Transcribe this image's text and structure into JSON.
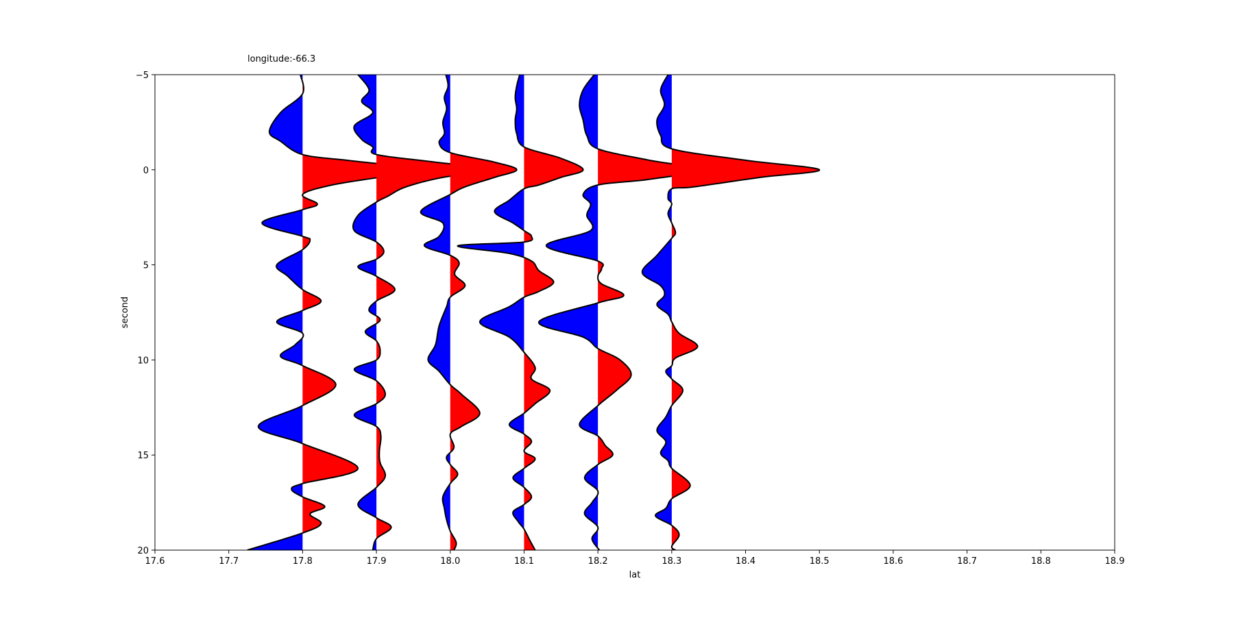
{
  "chart_data": {
    "type": "area",
    "title": "longitude:-66.3",
    "xlabel": "lat",
    "ylabel": "second",
    "xlim": [
      17.6,
      18.9
    ],
    "ylim": [
      -5,
      20
    ],
    "y_inverted": true,
    "grid": false,
    "x_ticks": [
      "17.6",
      "17.7",
      "17.8",
      "17.9",
      "18.0",
      "18.1",
      "18.2",
      "18.3",
      "18.4",
      "18.5",
      "18.6",
      "18.7",
      "18.8",
      "18.9"
    ],
    "y_ticks": [
      "-5",
      "0",
      "5",
      "10",
      "15",
      "20"
    ],
    "colors": {
      "positive": "#ff0000",
      "negative": "#0000ff",
      "outline": "#000000"
    },
    "series": [
      {
        "baseline": 17.8,
        "points": [
          [
            -5.0,
            -0.003
          ],
          [
            -4.0,
            0.0
          ],
          [
            -3.0,
            -0.03
          ],
          [
            -2.0,
            -0.045
          ],
          [
            -1.5,
            -0.03
          ],
          [
            -0.8,
            0.0
          ],
          [
            -0.5,
            0.06
          ],
          [
            -0.2,
            0.13
          ],
          [
            0.0,
            0.16
          ],
          [
            0.3,
            0.12
          ],
          [
            0.8,
            0.04
          ],
          [
            1.3,
            0.0
          ],
          [
            1.8,
            0.02
          ],
          [
            2.1,
            0.0
          ],
          [
            2.8,
            -0.055
          ],
          [
            3.5,
            0.0
          ],
          [
            3.7,
            0.01
          ],
          [
            4.2,
            0.0
          ],
          [
            5.0,
            -0.035
          ],
          [
            5.6,
            -0.02
          ],
          [
            6.3,
            0.0
          ],
          [
            6.9,
            0.025
          ],
          [
            7.4,
            0.0
          ],
          [
            8.0,
            -0.035
          ],
          [
            8.6,
            0.0
          ],
          [
            9.2,
            -0.01
          ],
          [
            9.8,
            -0.03
          ],
          [
            10.3,
            0.0
          ],
          [
            11.3,
            0.045
          ],
          [
            12.4,
            0.0
          ],
          [
            13.5,
            -0.06
          ],
          [
            14.4,
            0.0
          ],
          [
            15.7,
            0.075
          ],
          [
            16.5,
            0.0
          ],
          [
            16.8,
            -0.015
          ],
          [
            17.2,
            0.0
          ],
          [
            17.7,
            0.03
          ],
          [
            18.1,
            0.01
          ],
          [
            18.6,
            0.025
          ],
          [
            19.1,
            0.0
          ],
          [
            20.0,
            -0.075
          ]
        ]
      },
      {
        "baseline": 17.9,
        "points": [
          [
            -5.0,
            -0.025
          ],
          [
            -4.2,
            -0.01
          ],
          [
            -3.6,
            -0.02
          ],
          [
            -3.0,
            -0.005
          ],
          [
            -2.3,
            -0.03
          ],
          [
            -1.6,
            -0.02
          ],
          [
            -1.2,
            -0.005
          ],
          [
            -0.8,
            0.0
          ],
          [
            -0.4,
            0.08
          ],
          [
            0.0,
            0.16
          ],
          [
            0.4,
            0.09
          ],
          [
            0.9,
            0.04
          ],
          [
            1.4,
            0.015
          ],
          [
            1.7,
            0.0
          ],
          [
            2.4,
            -0.025
          ],
          [
            3.2,
            -0.03
          ],
          [
            3.8,
            0.0
          ],
          [
            4.3,
            0.01
          ],
          [
            4.7,
            0.0
          ],
          [
            5.1,
            -0.025
          ],
          [
            5.6,
            0.0
          ],
          [
            6.3,
            0.025
          ],
          [
            6.9,
            0.0
          ],
          [
            7.4,
            -0.01
          ],
          [
            7.9,
            0.005
          ],
          [
            8.5,
            -0.015
          ],
          [
            9.0,
            0.0
          ],
          [
            9.5,
            0.005
          ],
          [
            10.0,
            0.0
          ],
          [
            10.5,
            -0.03
          ],
          [
            11.1,
            0.0
          ],
          [
            11.8,
            0.012
          ],
          [
            12.3,
            0.0
          ],
          [
            12.9,
            -0.03
          ],
          [
            13.5,
            0.0
          ],
          [
            14.0,
            0.006
          ],
          [
            14.8,
            0.004
          ],
          [
            15.4,
            0.005
          ],
          [
            16.1,
            0.012
          ],
          [
            16.7,
            0.0
          ],
          [
            17.6,
            -0.025
          ],
          [
            18.3,
            0.0
          ],
          [
            18.8,
            0.02
          ],
          [
            19.4,
            0.0
          ],
          [
            20.0,
            -0.005
          ]
        ]
      },
      {
        "baseline": 18.0,
        "points": [
          [
            -5.0,
            -0.006
          ],
          [
            -4.4,
            -0.003
          ],
          [
            -3.8,
            -0.008
          ],
          [
            -3.2,
            -0.005
          ],
          [
            -2.5,
            -0.01
          ],
          [
            -1.9,
            -0.008
          ],
          [
            -1.4,
            -0.015
          ],
          [
            -0.9,
            0.0
          ],
          [
            -0.4,
            0.06
          ],
          [
            0.0,
            0.09
          ],
          [
            0.4,
            0.06
          ],
          [
            0.9,
            0.02
          ],
          [
            1.3,
            0.0
          ],
          [
            2.2,
            -0.04
          ],
          [
            2.8,
            -0.01
          ],
          [
            3.5,
            -0.015
          ],
          [
            4.0,
            -0.035
          ],
          [
            4.5,
            0.0
          ],
          [
            4.9,
            0.012
          ],
          [
            5.5,
            0.006
          ],
          [
            6.1,
            0.02
          ],
          [
            6.7,
            0.0
          ],
          [
            7.2,
            -0.005
          ],
          [
            8.2,
            -0.015
          ],
          [
            9.2,
            -0.02
          ],
          [
            10.0,
            -0.03
          ],
          [
            10.6,
            -0.015
          ],
          [
            11.3,
            0.0
          ],
          [
            11.8,
            0.015
          ],
          [
            12.8,
            0.04
          ],
          [
            13.5,
            0.015
          ],
          [
            13.9,
            0.0
          ],
          [
            14.6,
            0.005
          ],
          [
            15.1,
            -0.005
          ],
          [
            15.5,
            0.0
          ],
          [
            16.0,
            0.01
          ],
          [
            16.5,
            0.0
          ],
          [
            17.2,
            -0.01
          ],
          [
            17.8,
            -0.008
          ],
          [
            18.4,
            -0.005
          ],
          [
            19.0,
            0.0
          ],
          [
            19.6,
            0.008
          ],
          [
            20.0,
            0.005
          ]
        ]
      },
      {
        "baseline": 18.1,
        "points": [
          [
            -5.0,
            -0.006
          ],
          [
            -4.4,
            -0.01
          ],
          [
            -3.8,
            -0.012
          ],
          [
            -3.2,
            -0.01
          ],
          [
            -2.6,
            -0.012
          ],
          [
            -1.9,
            -0.01
          ],
          [
            -1.2,
            0.0
          ],
          [
            -0.6,
            0.05
          ],
          [
            0.0,
            0.08
          ],
          [
            0.4,
            0.05
          ],
          [
            0.8,
            0.02
          ],
          [
            1.0,
            0.0
          ],
          [
            1.6,
            -0.02
          ],
          [
            2.2,
            -0.04
          ],
          [
            2.8,
            -0.015
          ],
          [
            3.2,
            0.0
          ],
          [
            3.5,
            0.01
          ],
          [
            3.8,
            0.0
          ],
          [
            4.0,
            -0.09
          ],
          [
            4.4,
            -0.02
          ],
          [
            4.8,
            0.01
          ],
          [
            5.3,
            0.02
          ],
          [
            5.9,
            0.04
          ],
          [
            6.4,
            0.02
          ],
          [
            6.7,
            0.0
          ],
          [
            7.2,
            -0.02
          ],
          [
            8.0,
            -0.06
          ],
          [
            8.8,
            -0.02
          ],
          [
            9.6,
            0.0
          ],
          [
            10.4,
            0.015
          ],
          [
            11.0,
            0.01
          ],
          [
            11.6,
            0.035
          ],
          [
            12.3,
            0.015
          ],
          [
            12.8,
            0.0
          ],
          [
            13.4,
            -0.02
          ],
          [
            13.9,
            0.0
          ],
          [
            14.3,
            0.01
          ],
          [
            14.8,
            0.0
          ],
          [
            15.2,
            0.015
          ],
          [
            15.7,
            0.0
          ],
          [
            16.2,
            -0.015
          ],
          [
            16.7,
            0.0
          ],
          [
            17.2,
            0.01
          ],
          [
            17.6,
            0.0
          ],
          [
            18.0,
            -0.015
          ],
          [
            18.5,
            -0.008
          ],
          [
            18.9,
            0.0
          ],
          [
            19.5,
            0.008
          ],
          [
            20.0,
            0.015
          ]
        ]
      },
      {
        "baseline": 18.2,
        "points": [
          [
            -5.0,
            -0.005
          ],
          [
            -4.2,
            -0.02
          ],
          [
            -3.4,
            -0.025
          ],
          [
            -2.6,
            -0.02
          ],
          [
            -1.8,
            -0.015
          ],
          [
            -1.1,
            0.0
          ],
          [
            -0.5,
            0.07
          ],
          [
            0.0,
            0.14
          ],
          [
            0.5,
            0.07
          ],
          [
            0.8,
            0.0
          ],
          [
            1.3,
            -0.02
          ],
          [
            1.8,
            -0.01
          ],
          [
            2.4,
            -0.015
          ],
          [
            3.2,
            -0.01
          ],
          [
            4.0,
            -0.07
          ],
          [
            4.8,
            0.0
          ],
          [
            5.2,
            0.005
          ],
          [
            5.6,
            0.0
          ],
          [
            6.0,
            0.005
          ],
          [
            6.6,
            0.035
          ],
          [
            7.0,
            0.0
          ],
          [
            8.0,
            -0.08
          ],
          [
            8.8,
            -0.02
          ],
          [
            9.4,
            0.0
          ],
          [
            10.0,
            0.03
          ],
          [
            10.8,
            0.045
          ],
          [
            11.6,
            0.025
          ],
          [
            12.4,
            0.0
          ],
          [
            13.4,
            -0.025
          ],
          [
            14.0,
            0.0
          ],
          [
            14.5,
            0.01
          ],
          [
            15.0,
            0.02
          ],
          [
            15.5,
            0.0
          ],
          [
            16.2,
            -0.018
          ],
          [
            16.9,
            0.0
          ],
          [
            17.5,
            -0.008
          ],
          [
            18.1,
            -0.018
          ],
          [
            18.8,
            0.0
          ],
          [
            19.4,
            -0.008
          ],
          [
            20.0,
            0.002
          ]
        ]
      },
      {
        "baseline": 18.3,
        "points": [
          [
            -5.0,
            -0.005
          ],
          [
            -4.2,
            -0.015
          ],
          [
            -3.4,
            -0.01
          ],
          [
            -2.6,
            -0.02
          ],
          [
            -1.8,
            -0.015
          ],
          [
            -1.1,
            0.0
          ],
          [
            -0.5,
            0.1
          ],
          [
            0.0,
            0.2
          ],
          [
            0.4,
            0.12
          ],
          [
            0.9,
            0.03
          ],
          [
            1.0,
            0.0
          ],
          [
            1.5,
            -0.005
          ],
          [
            1.8,
            0.0
          ],
          [
            2.3,
            -0.005
          ],
          [
            2.8,
            0.0
          ],
          [
            3.3,
            0.005
          ],
          [
            3.6,
            0.0
          ],
          [
            4.5,
            -0.02
          ],
          [
            5.4,
            -0.04
          ],
          [
            6.1,
            -0.015
          ],
          [
            6.6,
            -0.01
          ],
          [
            7.1,
            -0.02
          ],
          [
            7.6,
            -0.005
          ],
          [
            8.0,
            0.0
          ],
          [
            8.6,
            0.01
          ],
          [
            9.3,
            0.035
          ],
          [
            9.9,
            0.005
          ],
          [
            10.3,
            0.0
          ],
          [
            10.6,
            -0.008
          ],
          [
            11.0,
            0.0
          ],
          [
            11.6,
            0.015
          ],
          [
            12.4,
            0.0
          ],
          [
            13.0,
            -0.008
          ],
          [
            13.7,
            -0.02
          ],
          [
            14.3,
            -0.008
          ],
          [
            14.9,
            -0.015
          ],
          [
            15.3,
            -0.005
          ],
          [
            15.7,
            0.0
          ],
          [
            16.6,
            0.025
          ],
          [
            17.3,
            0.0
          ],
          [
            17.8,
            -0.008
          ],
          [
            18.2,
            -0.022
          ],
          [
            18.7,
            0.0
          ],
          [
            19.2,
            0.01
          ],
          [
            19.8,
            0.0
          ],
          [
            20.0,
            0.005
          ]
        ]
      }
    ]
  }
}
